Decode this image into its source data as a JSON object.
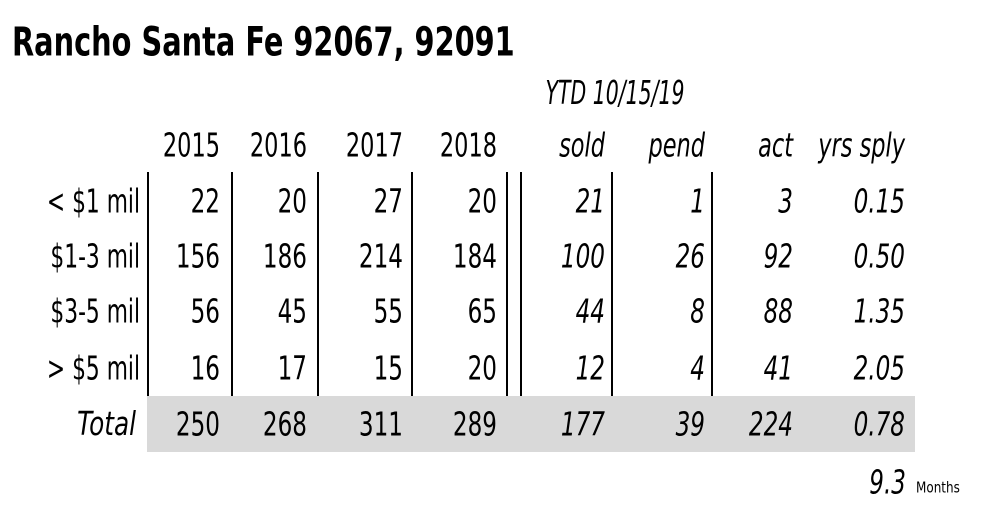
{
  "title": "Rancho Santa Fe 92067, 92091",
  "ytd_label": "YTD 10/15/19",
  "table": {
    "headers": [
      "2015",
      "2016",
      "2017",
      "2018",
      "sold",
      "pend",
      "act",
      "yrs sply"
    ],
    "rows": [
      {
        "label": "< $1 mil",
        "values": [
          "22",
          "20",
          "27",
          "20",
          "21",
          "1",
          "3",
          "0.15"
        ]
      },
      {
        "label": "$1-3 mil",
        "values": [
          "156",
          "186",
          "214",
          "184",
          "100",
          "26",
          "92",
          "0.50"
        ]
      },
      {
        "label": "$3-5 mil",
        "values": [
          "56",
          "45",
          "55",
          "65",
          "44",
          "8",
          "88",
          "1.35"
        ]
      },
      {
        "label": "> $5 mil",
        "values": [
          "16",
          "17",
          "15",
          "20",
          "12",
          "4",
          "41",
          "2.05"
        ]
      }
    ],
    "total": {
      "label": "Total",
      "values": [
        "250",
        "268",
        "311",
        "289",
        "177",
        "39",
        "224",
        "0.78"
      ]
    }
  },
  "footer": {
    "value": "9.3",
    "unit": "Months"
  }
}
